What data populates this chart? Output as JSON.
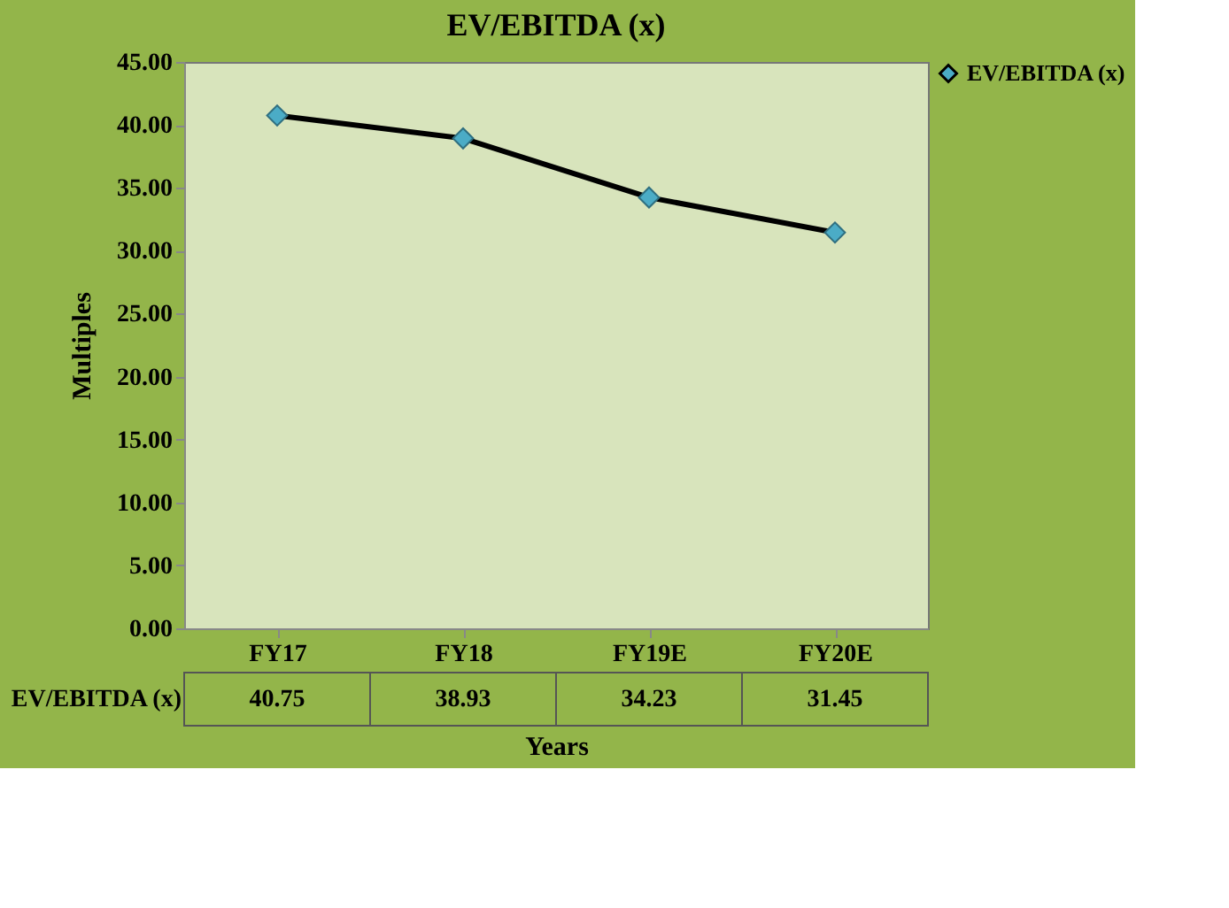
{
  "chart_data": {
    "type": "line",
    "title": "EV/EBITDA (x)",
    "xlabel": "Years",
    "ylabel": "Multiples",
    "categories": [
      "FY17",
      "FY18",
      "FY19E",
      "FY20E"
    ],
    "series": [
      {
        "name": "EV/EBITDA (x)",
        "color": "#000000",
        "values": [
          40.75,
          38.93,
          34.23,
          31.45
        ]
      }
    ],
    "ylim": [
      0,
      45
    ],
    "yticks": [
      {
        "value": 0,
        "label": "0.00"
      },
      {
        "value": 5,
        "label": "5.00"
      },
      {
        "value": 10,
        "label": "10.00"
      },
      {
        "value": 15,
        "label": "15.00"
      },
      {
        "value": 20,
        "label": "20.00"
      },
      {
        "value": 25,
        "label": "25.00"
      },
      {
        "value": 30,
        "label": "30.00"
      },
      {
        "value": 35,
        "label": "35.00"
      },
      {
        "value": 40,
        "label": "40.00"
      },
      {
        "value": 45,
        "label": "45.00"
      }
    ],
    "grid": false,
    "legend": "right",
    "marker": "diamond",
    "line_style": "solid",
    "data_labels": true
  }
}
